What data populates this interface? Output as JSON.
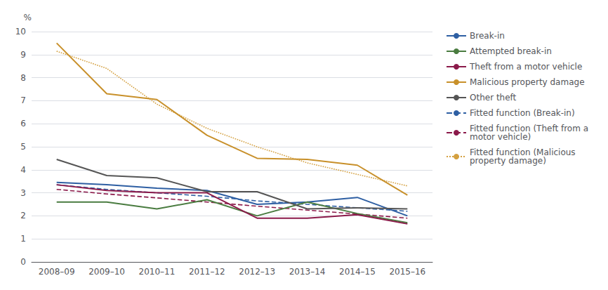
{
  "chart_data": {
    "type": "line",
    "y_label": "%",
    "categories": [
      "2008–09",
      "2009–10",
      "2010–11",
      "2011–12",
      "2012–13",
      "2013–14",
      "2014–15",
      "2015–16"
    ],
    "series": [
      {
        "name": "Break-in",
        "color": "#2e5fa3",
        "line_style": "solid",
        "values": [
          3.45,
          3.35,
          3.2,
          3.1,
          2.5,
          2.6,
          2.8,
          2.0
        ]
      },
      {
        "name": "Attempted break-in",
        "color": "#4a7c40",
        "line_style": "solid",
        "values": [
          2.6,
          2.6,
          2.3,
          2.7,
          2.0,
          2.6,
          2.1,
          1.7
        ]
      },
      {
        "name": "Theft from a motor vehicle",
        "color": "#8b1a4a",
        "line_style": "solid",
        "values": [
          3.35,
          3.1,
          3.0,
          3.0,
          1.9,
          1.9,
          2.05,
          1.65
        ]
      },
      {
        "name": "Malicious property damage",
        "color": "#c8902a",
        "line_style": "solid",
        "values": [
          9.5,
          7.3,
          7.05,
          5.5,
          4.5,
          4.45,
          4.2,
          2.9
        ]
      },
      {
        "name": "Other theft",
        "color": "#555555",
        "line_style": "solid",
        "values": [
          4.45,
          3.75,
          3.65,
          3.05,
          3.05,
          2.3,
          2.35,
          2.3
        ]
      },
      {
        "name": "Fitted function (Break-in)",
        "color": "#2e5fa3",
        "line_style": "dashed",
        "values": [
          3.35,
          3.15,
          3.0,
          2.85,
          2.65,
          2.5,
          2.35,
          2.2
        ]
      },
      {
        "name": "Fitted function (Theft from a\nmotor vehicle)",
        "color": "#8b1a4a",
        "line_style": "dashed",
        "values": [
          3.15,
          2.95,
          2.78,
          2.6,
          2.42,
          2.25,
          2.08,
          1.9
        ]
      },
      {
        "name": "Fitted function (Malicious\nproperty damage)",
        "color": "#d4a040",
        "line_style": "dotted",
        "values": [
          9.15,
          8.4,
          6.85,
          5.8,
          5.0,
          4.3,
          3.8,
          3.3
        ]
      }
    ],
    "ylim": [
      0,
      10
    ],
    "yticks": [
      0,
      1,
      2,
      3,
      4,
      5,
      6,
      7,
      8,
      9,
      10
    ],
    "grid": true,
    "legend": "right"
  }
}
